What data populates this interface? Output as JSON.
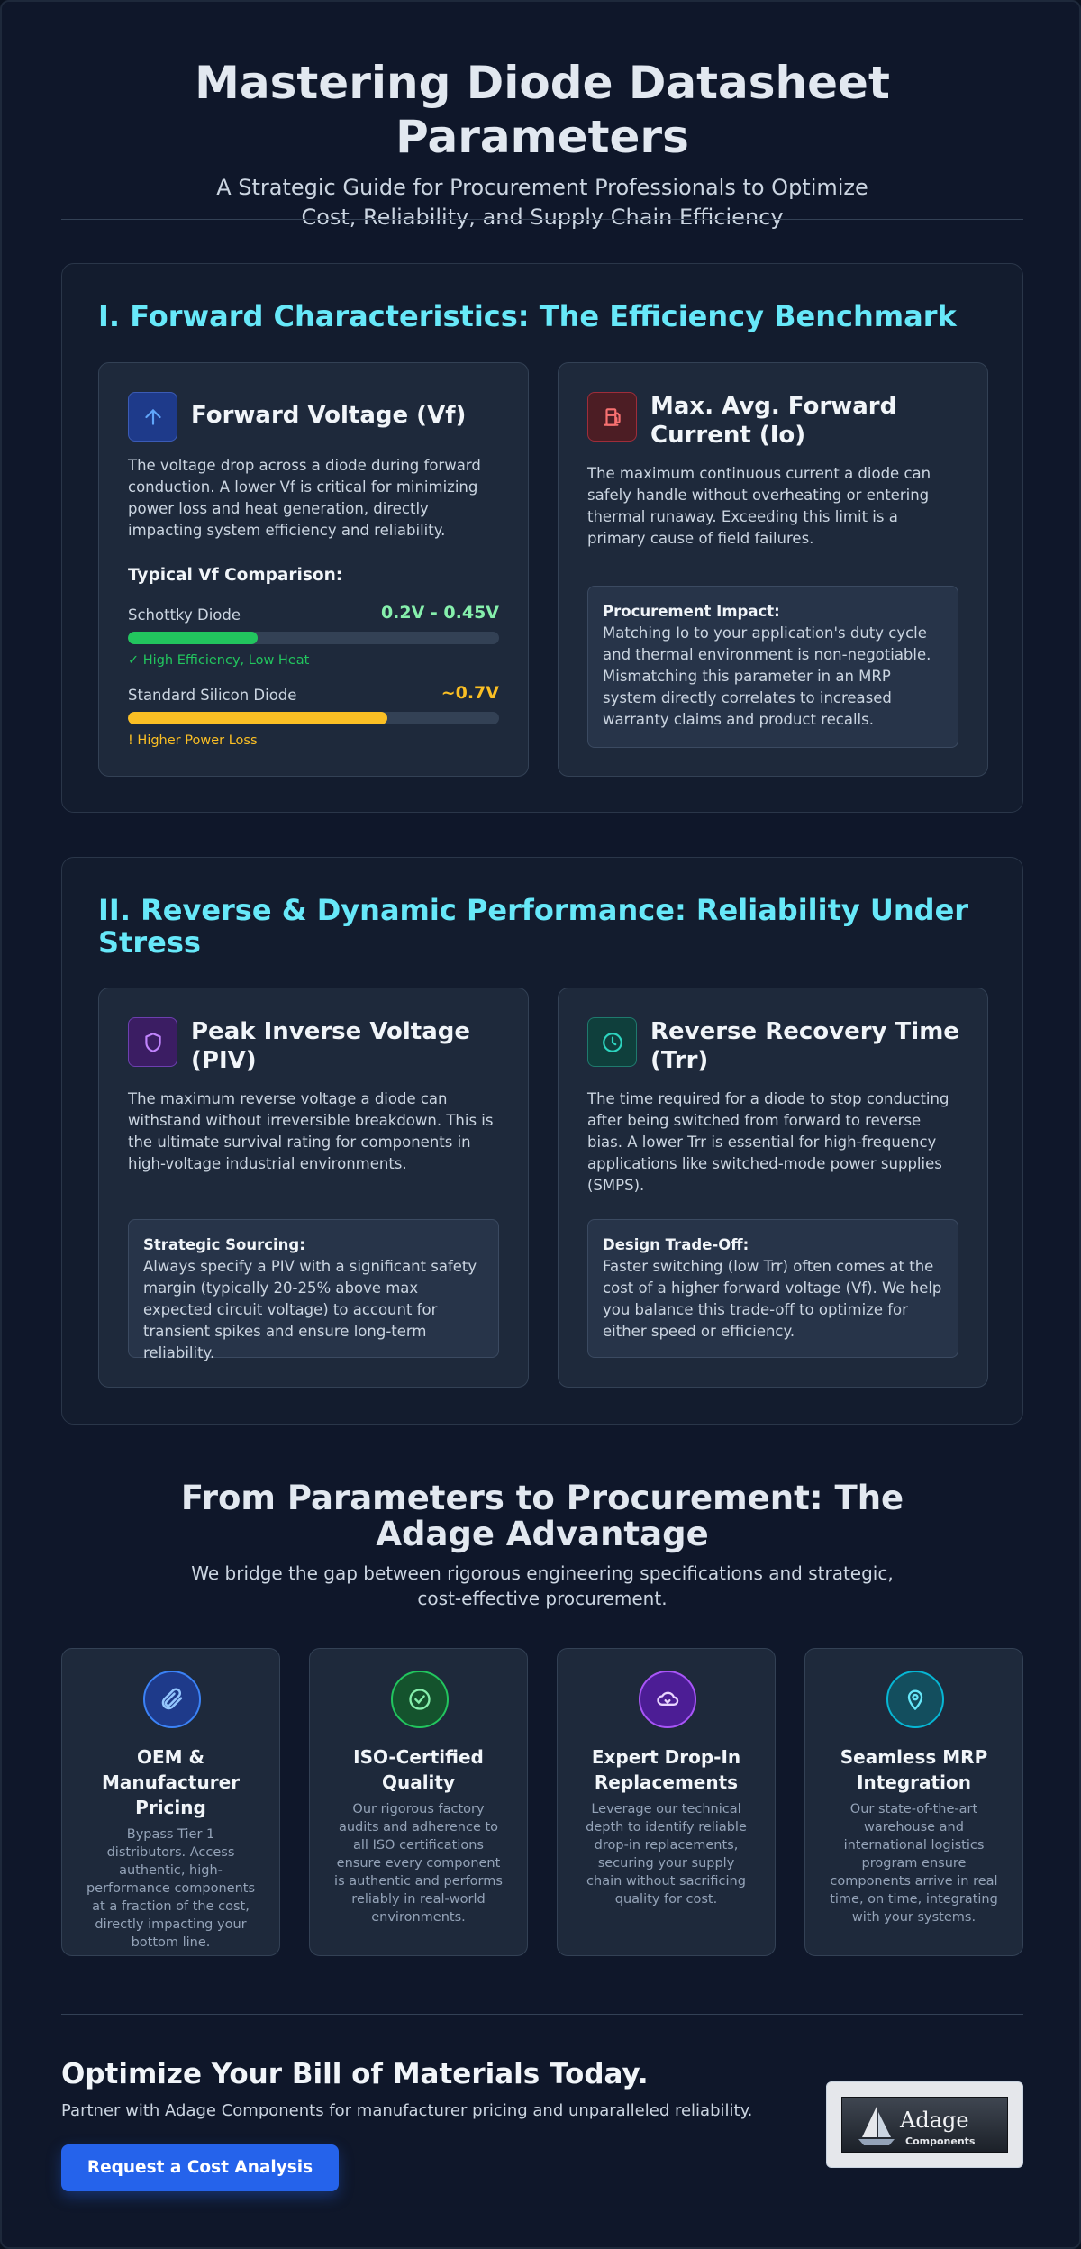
{
  "header": {
    "title": "Mastering Diode Datasheet Parameters",
    "subtitle": "A Strategic Guide for Procurement Professionals to Optimize Cost, Reliability, and Supply Chain Efficiency"
  },
  "section1": {
    "title": "I. Forward Characteristics: The Efficiency Benchmark",
    "card_vf": {
      "icon": "arrow-up-icon",
      "title": "Forward Voltage (Vf)",
      "text": "The voltage drop across a diode during forward conduction. A lower Vf is critical for minimizing power loss and heat generation, directly impacting system efficiency and reliability.",
      "comparison_heading": "Typical Vf Comparison:",
      "rows": [
        {
          "label": "Schottky Diode",
          "value": "0.2V - 0.45V",
          "fill": 0.35,
          "note": "✓ High Efficiency, Low Heat",
          "color": "#22c55e",
          "value_color": "#86efac"
        },
        {
          "label": "Standard Silicon Diode",
          "value": "~0.7V",
          "fill": 0.7,
          "note": "! Higher Power Loss",
          "color": "#fbbf24",
          "value_color": "#fbbf24"
        }
      ]
    },
    "card_io": {
      "icon": "fuel-pump-icon",
      "title": "Max. Avg. Forward Current (Io)",
      "text": "The maximum continuous current a diode can safely handle without overheating or entering thermal runaway. Exceeding this limit is a primary cause of field failures.",
      "callout_label": "Procurement Impact:",
      "callout_text": "Matching Io to your application's duty cycle and thermal environment is non-negotiable. Mismatching this parameter in an MRP system directly correlates to increased warranty claims and product recalls."
    }
  },
  "section2": {
    "title": "II. Reverse & Dynamic Performance: Reliability Under Stress",
    "card_piv": {
      "icon": "shield-icon",
      "title": "Peak Inverse Voltage (PIV)",
      "text": "The maximum reverse voltage a diode can withstand without irreversible breakdown. This is the ultimate survival rating for components in high-voltage industrial environments.",
      "callout_label": "Strategic Sourcing:",
      "callout_text": "Always specify a PIV with a significant safety margin (typically 20-25% above max expected circuit voltage) to account for transient spikes and ensure long-term reliability."
    },
    "card_trr": {
      "icon": "clock-icon",
      "title": "Reverse Recovery Time (Trr)",
      "text": "The time required for a diode to stop conducting after being switched from forward to reverse bias. A lower Trr is essential for high-frequency applications like switched-mode power supplies (SMPS).",
      "callout_label": "Design Trade-Off:",
      "callout_text": "Faster switching (low Trr) often comes at the cost of a higher forward voltage (Vf). We help you balance this trade-off to optimize for either speed or efficiency."
    }
  },
  "advantage": {
    "title": "From Parameters to Procurement: The Adage Advantage",
    "subtitle": "We bridge the gap between rigorous engineering specifications and strategic, cost-effective procurement.",
    "features": [
      {
        "icon": "paperclip-icon",
        "title": "OEM & Manufacturer Pricing",
        "text": "Bypass Tier 1 distributors. Access authentic, high-performance components at a fraction of the cost, directly impacting your bottom line."
      },
      {
        "icon": "check-circle-icon",
        "title": "ISO-Certified Quality",
        "text": "Our rigorous factory audits and adherence to all ISO certifications ensure every component is authentic and performs reliably in real-world environments."
      },
      {
        "icon": "swap-icon",
        "title": "Expert Drop-In Replacements",
        "text": "Leverage our technical depth to identify reliable drop-in replacements, securing your supply chain without sacrificing quality for cost."
      },
      {
        "icon": "map-pin-icon",
        "title": "Seamless MRP Integration",
        "text": "Our state-of-the-art warehouse and international logistics program ensure components arrive in real time, on time, integrating with your systems."
      }
    ]
  },
  "cta": {
    "title": "Optimize Your Bill of Materials Today.",
    "subtitle": "Partner with Adage Components for manufacturer pricing and unparalleled reliability.",
    "button": "Request a Cost Analysis",
    "logo_word": "Adage",
    "logo_sub": "Components"
  }
}
